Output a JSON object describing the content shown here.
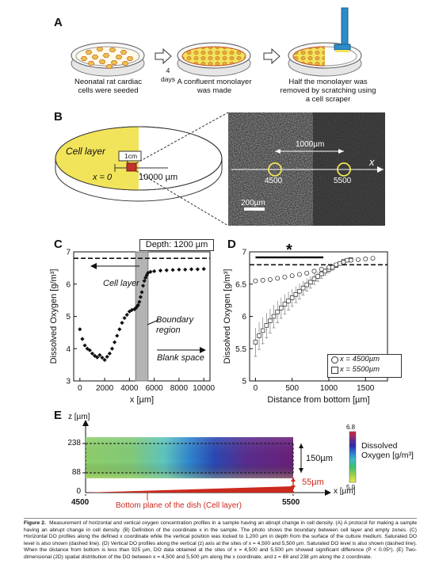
{
  "panel_labels": [
    "A",
    "B",
    "C",
    "D",
    "E"
  ],
  "panel_a": {
    "step1_caption": "Neonatal rat cardiac cells were seeded",
    "arrow1_label": "4 days",
    "step2_caption": "A confluent monolayer was made",
    "step3_caption": "Half the monolayer was removed by scratching using a cell scraper"
  },
  "panel_b": {
    "cell_layer_label": "Cell layer",
    "inset_label": "1cm",
    "x0_label": "x = 0",
    "x_end_label": "10000 µm",
    "photo_span_label": "1000µm",
    "photo_x_axis": "x",
    "site1_label": "4500",
    "site2_label": "5500",
    "scale_bar_label": "200µm"
  },
  "panel_c": {
    "depth_label": "Depth: 1200 µm",
    "cell_layer_label": "Cell layer",
    "boundary_label": "Boundary region",
    "blank_label": "Blank space"
  },
  "panel_d": {
    "significance_mark": "*",
    "legend_4500": "x = 4500µm",
    "legend_5500": "x = 5500µm"
  },
  "panel_e": {
    "z_axis_label": "z [µm]",
    "z_tick_238": "238",
    "z_tick_88": "88",
    "z_tick_0": "0",
    "x_axis_label": "x [µm]",
    "x_tick_4500": "4500",
    "x_tick_5500": "5500",
    "span_label": "150µm",
    "offset_label": "55µm",
    "bottom_plane_label": "Bottom plane of the dish (Cell layer)",
    "colorbar_max": "6.8",
    "colorbar_min": "5.0",
    "colorbar_title": "Dissolved Oxygen [g/m³]"
  },
  "colors": {
    "yellow": "#f2e45a",
    "red": "#cc2a1e",
    "bar_gray": "#b4b4b4",
    "arrow_blue": "#2e8bc9"
  },
  "caption": {
    "title": "Figure 2.",
    "text": "Measurement of horizontal and vertical oxygen concentration profiles in a sample having an abrupt change in cell density. (A) A protocol for making a sample having an abrupt change in cell density. (B) Definition of the coordinate x in the sample. The photo shows the boundary between cell layer and empty zones. (C) Horizontal DO profiles along the defined x coordinate while the vertical position was locked to 1,200 µm in depth from the surface of the culture medium. Saturated DO level is also shown (dashed line). (D) Vertical DO profiles along the vertical (z) axis at the sites of x = 4,500 and 5,500 µm. Saturated DO level is also shown (dashed line). When the distance from bottom is less than 925 µm, DO data obtained at the sites of x = 4,500 and 5,500 µm showed significant difference (P < 0.05*). (E) Two-dimensional (2D) spatial distribution of the DO between x = 4,500 and 5,500 µm along the x coordinate, and z = 88 and 238 µm along the z coordinate."
  },
  "chart_data": [
    {
      "type": "scatter",
      "panel": "C",
      "xlabel": "x [µm]",
      "ylabel": "Dissolved Oxygen [g/m³]",
      "xlim": [
        -500,
        10500
      ],
      "ylim": [
        3,
        7
      ],
      "xticks": [
        0,
        2000,
        4000,
        6000,
        8000,
        10000
      ],
      "yticks": [
        3,
        4,
        5,
        6,
        7
      ],
      "saturated_level": 6.8,
      "boundary_band": [
        4500,
        5500
      ],
      "series": [
        {
          "points": [
            [
              0,
              4.6
            ],
            [
              200,
              4.3
            ],
            [
              400,
              4.1
            ],
            [
              600,
              4.0
            ],
            [
              800,
              3.95
            ],
            [
              1000,
              3.85
            ],
            [
              1200,
              3.78
            ],
            [
              1400,
              3.73
            ],
            [
              1600,
              3.8
            ],
            [
              1800,
              3.72
            ],
            [
              2000,
              3.65
            ],
            [
              2200,
              3.75
            ],
            [
              2400,
              3.85
            ],
            [
              2600,
              4.0
            ],
            [
              2800,
              4.2
            ],
            [
              3000,
              4.4
            ],
            [
              3200,
              4.6
            ],
            [
              3400,
              4.8
            ],
            [
              3600,
              4.95
            ],
            [
              3800,
              5.05
            ],
            [
              4000,
              5.15
            ],
            [
              4200,
              5.2
            ],
            [
              4400,
              5.22
            ],
            [
              4500,
              5.25
            ],
            [
              4600,
              5.3
            ],
            [
              4700,
              5.35
            ],
            [
              4800,
              5.45
            ],
            [
              4900,
              5.6
            ],
            [
              5000,
              5.75
            ],
            [
              5100,
              5.95
            ],
            [
              5200,
              6.1
            ],
            [
              5300,
              6.2
            ],
            [
              5400,
              6.28
            ],
            [
              5500,
              6.35
            ],
            [
              5700,
              6.38
            ],
            [
              6000,
              6.4
            ],
            [
              6500,
              6.42
            ],
            [
              7000,
              6.43
            ],
            [
              7500,
              6.44
            ],
            [
              8000,
              6.45
            ],
            [
              8500,
              6.45
            ],
            [
              9000,
              6.46
            ],
            [
              9500,
              6.46
            ],
            [
              10000,
              6.47
            ]
          ]
        }
      ]
    },
    {
      "type": "scatter",
      "panel": "D",
      "xlabel": "Distance from bottom [µm]",
      "ylabel": "Dissolved Oxygen [g/m³]",
      "xlim": [
        -80,
        1800
      ],
      "ylim": [
        5,
        7
      ],
      "xticks": [
        0,
        500,
        1000,
        1500
      ],
      "yticks": [
        5,
        5.5,
        6,
        6.5,
        7
      ],
      "saturated_level": 6.8,
      "significance_range": [
        0,
        925
      ],
      "series": [
        {
          "name": "x = 4500µm",
          "marker": "circle",
          "points": [
            [
              0,
              6.55
            ],
            [
              100,
              6.56
            ],
            [
              200,
              6.57
            ],
            [
              300,
              6.59
            ],
            [
              400,
              6.61
            ],
            [
              500,
              6.63
            ],
            [
              600,
              6.65
            ],
            [
              700,
              6.67
            ],
            [
              800,
              6.7
            ],
            [
              900,
              6.73
            ],
            [
              1000,
              6.76
            ],
            [
              1100,
              6.8
            ],
            [
              1200,
              6.84
            ],
            [
              1300,
              6.87
            ],
            [
              1400,
              6.88
            ],
            [
              1500,
              6.89
            ],
            [
              1600,
              6.9
            ]
          ]
        },
        {
          "name": "x = 5500µm",
          "marker": "square",
          "points": [
            [
              0,
              5.6
            ],
            [
              50,
              5.7
            ],
            [
              100,
              5.78
            ],
            [
              150,
              5.86
            ],
            [
              200,
              5.93
            ],
            [
              250,
              6.0
            ],
            [
              300,
              6.07
            ],
            [
              350,
              6.13
            ],
            [
              400,
              6.19
            ],
            [
              450,
              6.24
            ],
            [
              500,
              6.29
            ],
            [
              550,
              6.34
            ],
            [
              600,
              6.39
            ],
            [
              650,
              6.44
            ],
            [
              700,
              6.49
            ],
            [
              750,
              6.53
            ],
            [
              800,
              6.58
            ],
            [
              850,
              6.62
            ],
            [
              900,
              6.66
            ],
            [
              950,
              6.7
            ],
            [
              1000,
              6.73
            ],
            [
              1050,
              6.76
            ],
            [
              1100,
              6.79
            ],
            [
              1150,
              6.82
            ],
            [
              1200,
              6.85
            ],
            [
              1250,
              6.87
            ],
            [
              1300,
              6.88
            ]
          ]
        }
      ]
    },
    {
      "type": "heatmap",
      "panel": "E",
      "xlabel": "x [µm]",
      "ylabel": "z [µm]",
      "x_range": [
        4500,
        5500
      ],
      "z_range": [
        88,
        238
      ],
      "colorbar_range": [
        5.0,
        6.8
      ]
    }
  ]
}
